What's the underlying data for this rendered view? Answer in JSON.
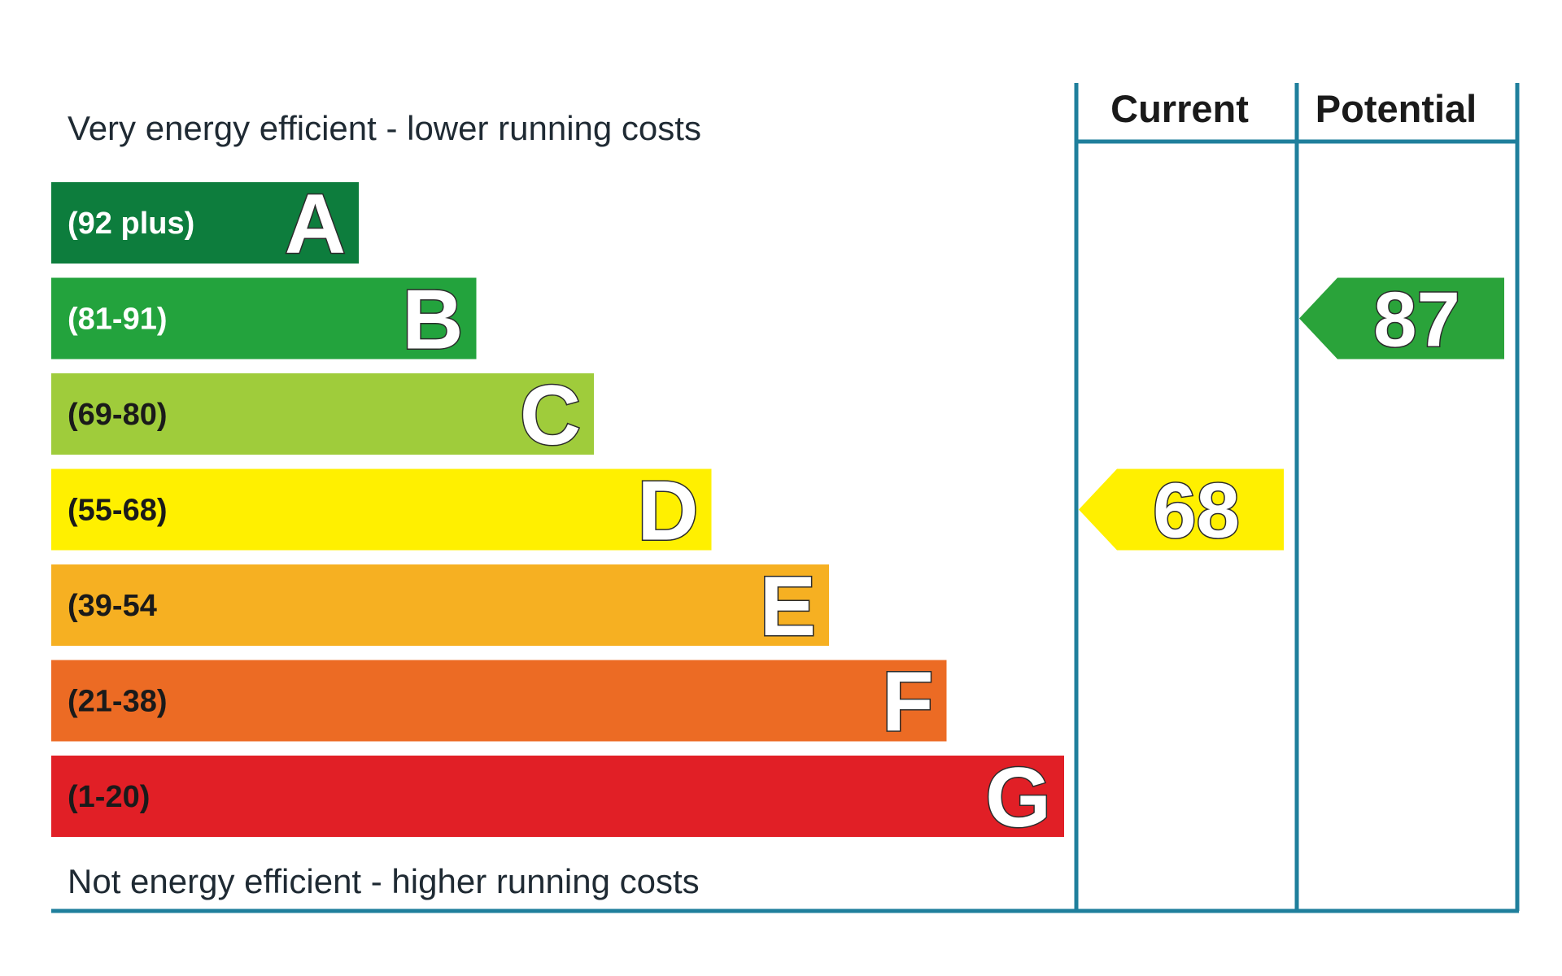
{
  "chart_data": {
    "type": "bar",
    "top_caption": "Very energy efficient - lower running costs",
    "bottom_caption": "Not energy efficient - higher running costs",
    "columns": [
      "Current",
      "Potential"
    ],
    "bands": [
      {
        "letter": "A",
        "range": "(92 plus)",
        "color": "#0d7d3d",
        "text_color": "#ffffff"
      },
      {
        "letter": "B",
        "range": "(81-91)",
        "color": "#23a33d",
        "text_color": "#ffffff"
      },
      {
        "letter": "C",
        "range": "(69-80)",
        "color": "#9fcc3b",
        "text_color": "#1a1a1a"
      },
      {
        "letter": "D",
        "range": "(55-68)",
        "color": "#fff000",
        "text_color": "#1a1a1a"
      },
      {
        "letter": "E",
        "range": "(39-54",
        "color": "#f6b022",
        "text_color": "#1a1a1a"
      },
      {
        "letter": "F",
        "range": "(21-38)",
        "color": "#ec6b24",
        "text_color": "#1a1a1a"
      },
      {
        "letter": "G",
        "range": "(1-20)",
        "color": "#e11f26",
        "text_color": "#1a1a1a"
      }
    ],
    "ratings": {
      "current": {
        "value": 68,
        "band": "D",
        "color": "#fff000"
      },
      "potential": {
        "value": 87,
        "band": "B",
        "color": "#2aa33a"
      }
    },
    "frame_color": "#1f7f9c"
  }
}
